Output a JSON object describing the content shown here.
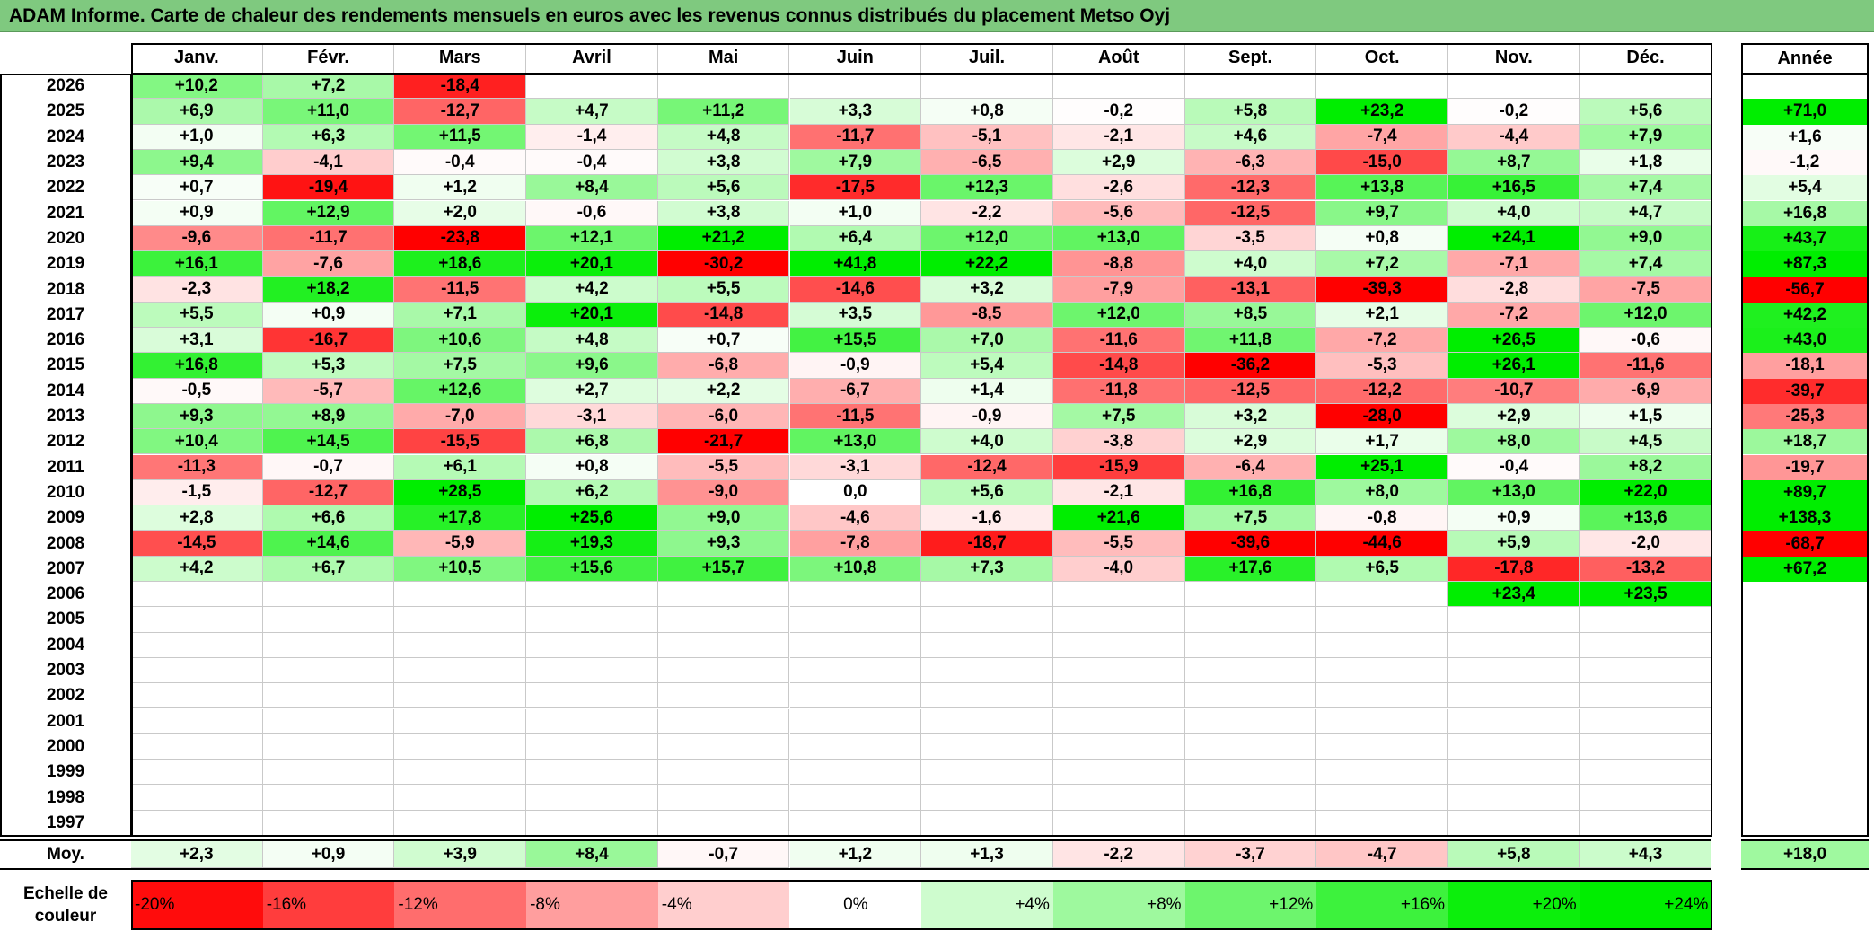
{
  "title": "ADAM Informe. Carte de chaleur des rendements mensuels en euros avec les revenus connus distribués du placement Metso Oyj",
  "colors": {
    "title_bg": "#7fc97f",
    "neg_max": "#ff0000",
    "pos_max": "#00ee00",
    "neutral": "#ffffff"
  },
  "chart_data": {
    "type": "heatmap",
    "title": "ADAM Informe. Carte de chaleur des rendements mensuels en euros avec les revenus connus distribués du placement Metso Oyj",
    "months": [
      "Janv.",
      "Févr.",
      "Mars",
      "Avril",
      "Mai",
      "Juin",
      "Juil.",
      "Août",
      "Sept.",
      "Oct.",
      "Nov.",
      "Déc."
    ],
    "annual_label": "Année",
    "average_label": "Moy.",
    "rows": [
      {
        "year": "2026",
        "values": [
          "+10,2",
          "+7,2",
          "-18,4",
          "",
          "",
          "",
          "",
          "",
          "",
          "",
          "",
          ""
        ],
        "annual": ""
      },
      {
        "year": "2025",
        "values": [
          "+6,9",
          "+11,0",
          "-12,7",
          "+4,7",
          "+11,2",
          "+3,3",
          "+0,8",
          "-0,2",
          "+5,8",
          "+23,2",
          "-0,2",
          "+5,6"
        ],
        "annual": "+71,0"
      },
      {
        "year": "2024",
        "values": [
          "+1,0",
          "+6,3",
          "+11,5",
          "-1,4",
          "+4,8",
          "-11,7",
          "-5,1",
          "-2,1",
          "+4,6",
          "-7,4",
          "-4,4",
          "+7,9"
        ],
        "annual": "+1,6"
      },
      {
        "year": "2023",
        "values": [
          "+9,4",
          "-4,1",
          "-0,4",
          "-0,4",
          "+3,8",
          "+7,9",
          "-6,5",
          "+2,9",
          "-6,3",
          "-15,0",
          "+8,7",
          "+1,8"
        ],
        "annual": "-1,2"
      },
      {
        "year": "2022",
        "values": [
          "+0,7",
          "-19,4",
          "+1,2",
          "+8,4",
          "+5,6",
          "-17,5",
          "+12,3",
          "-2,6",
          "-12,3",
          "+13,8",
          "+16,5",
          "+7,4"
        ],
        "annual": "+5,4"
      },
      {
        "year": "2021",
        "values": [
          "+0,9",
          "+12,9",
          "+2,0",
          "-0,6",
          "+3,8",
          "+1,0",
          "-2,2",
          "-5,6",
          "-12,5",
          "+9,7",
          "+4,0",
          "+4,7"
        ],
        "annual": "+16,8"
      },
      {
        "year": "2020",
        "values": [
          "-9,6",
          "-11,7",
          "-23,8",
          "+12,1",
          "+21,2",
          "+6,4",
          "+12,0",
          "+13,0",
          "-3,5",
          "+0,8",
          "+24,1",
          "+9,0"
        ],
        "annual": "+43,7"
      },
      {
        "year": "2019",
        "values": [
          "+16,1",
          "-7,6",
          "+18,6",
          "+20,1",
          "-30,2",
          "+41,8",
          "+22,2",
          "-8,8",
          "+4,0",
          "+7,2",
          "-7,1",
          "+7,4"
        ],
        "annual": "+87,3"
      },
      {
        "year": "2018",
        "values": [
          "-2,3",
          "+18,2",
          "-11,5",
          "+4,2",
          "+5,5",
          "-14,6",
          "+3,2",
          "-7,9",
          "-13,1",
          "-39,3",
          "-2,8",
          "-7,5"
        ],
        "annual": "-56,7"
      },
      {
        "year": "2017",
        "values": [
          "+5,5",
          "+0,9",
          "+7,1",
          "+20,1",
          "-14,8",
          "+3,5",
          "-8,5",
          "+12,0",
          "+8,5",
          "+2,1",
          "-7,2",
          "+12,0"
        ],
        "annual": "+42,2"
      },
      {
        "year": "2016",
        "values": [
          "+3,1",
          "-16,7",
          "+10,6",
          "+4,8",
          "+0,7",
          "+15,5",
          "+7,0",
          "-11,6",
          "+11,8",
          "-7,2",
          "+26,5",
          "-0,6"
        ],
        "annual": "+43,0"
      },
      {
        "year": "2015",
        "values": [
          "+16,8",
          "+5,3",
          "+7,5",
          "+9,6",
          "-6,8",
          "-0,9",
          "+5,4",
          "-14,8",
          "-36,2",
          "-5,3",
          "+26,1",
          "-11,6"
        ],
        "annual": "-18,1"
      },
      {
        "year": "2014",
        "values": [
          "-0,5",
          "-5,7",
          "+12,6",
          "+2,7",
          "+2,2",
          "-6,7",
          "+1,4",
          "-11,8",
          "-12,5",
          "-12,2",
          "-10,7",
          "-6,9"
        ],
        "annual": "-39,7"
      },
      {
        "year": "2013",
        "values": [
          "+9,3",
          "+8,9",
          "-7,0",
          "-3,1",
          "-6,0",
          "-11,5",
          "-0,9",
          "+7,5",
          "+3,2",
          "-28,0",
          "+2,9",
          "+1,5"
        ],
        "annual": "-25,3"
      },
      {
        "year": "2012",
        "values": [
          "+10,4",
          "+14,5",
          "-15,5",
          "+6,8",
          "-21,7",
          "+13,0",
          "+4,0",
          "-3,8",
          "+2,9",
          "+1,7",
          "+8,0",
          "+4,5"
        ],
        "annual": "+18,7"
      },
      {
        "year": "2011",
        "values": [
          "-11,3",
          "-0,7",
          "+6,1",
          "+0,8",
          "-5,5",
          "-3,1",
          "-12,4",
          "-15,9",
          "-6,4",
          "+25,1",
          "-0,4",
          "+8,2"
        ],
        "annual": "-19,7"
      },
      {
        "year": "2010",
        "values": [
          "-1,5",
          "-12,7",
          "+28,5",
          "+6,2",
          "-9,0",
          "0,0",
          "+5,6",
          "-2,1",
          "+16,8",
          "+8,0",
          "+13,0",
          "+22,0"
        ],
        "annual": "+89,7"
      },
      {
        "year": "2009",
        "values": [
          "+2,8",
          "+6,6",
          "+17,8",
          "+25,6",
          "+9,0",
          "-4,6",
          "-1,6",
          "+21,6",
          "+7,5",
          "-0,8",
          "+0,9",
          "+13,6"
        ],
        "annual": "+138,3"
      },
      {
        "year": "2008",
        "values": [
          "-14,5",
          "+14,6",
          "-5,9",
          "+19,3",
          "+9,3",
          "-7,8",
          "-18,7",
          "-5,5",
          "-39,6",
          "-44,6",
          "+5,9",
          "-2,0"
        ],
        "annual": "-68,7"
      },
      {
        "year": "2007",
        "values": [
          "+4,2",
          "+6,7",
          "+10,5",
          "+15,6",
          "+15,7",
          "+10,8",
          "+7,3",
          "-4,0",
          "+17,6",
          "+6,5",
          "-17,8",
          "-13,2"
        ],
        "annual": "+67,2"
      },
      {
        "year": "2006",
        "values": [
          "",
          "",
          "",
          "",
          "",
          "",
          "",
          "",
          "",
          "",
          "+23,4",
          "+23,5"
        ],
        "annual": ""
      },
      {
        "year": "2005",
        "values": [
          "",
          "",
          "",
          "",
          "",
          "",
          "",
          "",
          "",
          "",
          "",
          ""
        ],
        "annual": ""
      },
      {
        "year": "2004",
        "values": [
          "",
          "",
          "",
          "",
          "",
          "",
          "",
          "",
          "",
          "",
          "",
          ""
        ],
        "annual": ""
      },
      {
        "year": "2003",
        "values": [
          "",
          "",
          "",
          "",
          "",
          "",
          "",
          "",
          "",
          "",
          "",
          ""
        ],
        "annual": ""
      },
      {
        "year": "2002",
        "values": [
          "",
          "",
          "",
          "",
          "",
          "",
          "",
          "",
          "",
          "",
          "",
          ""
        ],
        "annual": ""
      },
      {
        "year": "2001",
        "values": [
          "",
          "",
          "",
          "",
          "",
          "",
          "",
          "",
          "",
          "",
          "",
          ""
        ],
        "annual": ""
      },
      {
        "year": "2000",
        "values": [
          "",
          "",
          "",
          "",
          "",
          "",
          "",
          "",
          "",
          "",
          "",
          ""
        ],
        "annual": ""
      },
      {
        "year": "1999",
        "values": [
          "",
          "",
          "",
          "",
          "",
          "",
          "",
          "",
          "",
          "",
          "",
          ""
        ],
        "annual": ""
      },
      {
        "year": "1998",
        "values": [
          "",
          "",
          "",
          "",
          "",
          "",
          "",
          "",
          "",
          "",
          "",
          ""
        ],
        "annual": ""
      },
      {
        "year": "1997",
        "values": [
          "",
          "",
          "",
          "",
          "",
          "",
          "",
          "",
          "",
          "",
          "",
          ""
        ],
        "annual": ""
      }
    ],
    "averages": [
      "+2,3",
      "+0,9",
      "+3,9",
      "+8,4",
      "-0,7",
      "+1,2",
      "+1,3",
      "-2,2",
      "-3,7",
      "-4,7",
      "+5,8",
      "+4,3"
    ],
    "average_annual": "+18,0",
    "color_scale": {
      "label": "Echelle de couleur",
      "steps": [
        "-20%",
        "-16%",
        "-12%",
        "-8%",
        "-4%",
        "0%",
        "+4%",
        "+8%",
        "+12%",
        "+16%",
        "+20%",
        "+24%"
      ]
    }
  }
}
